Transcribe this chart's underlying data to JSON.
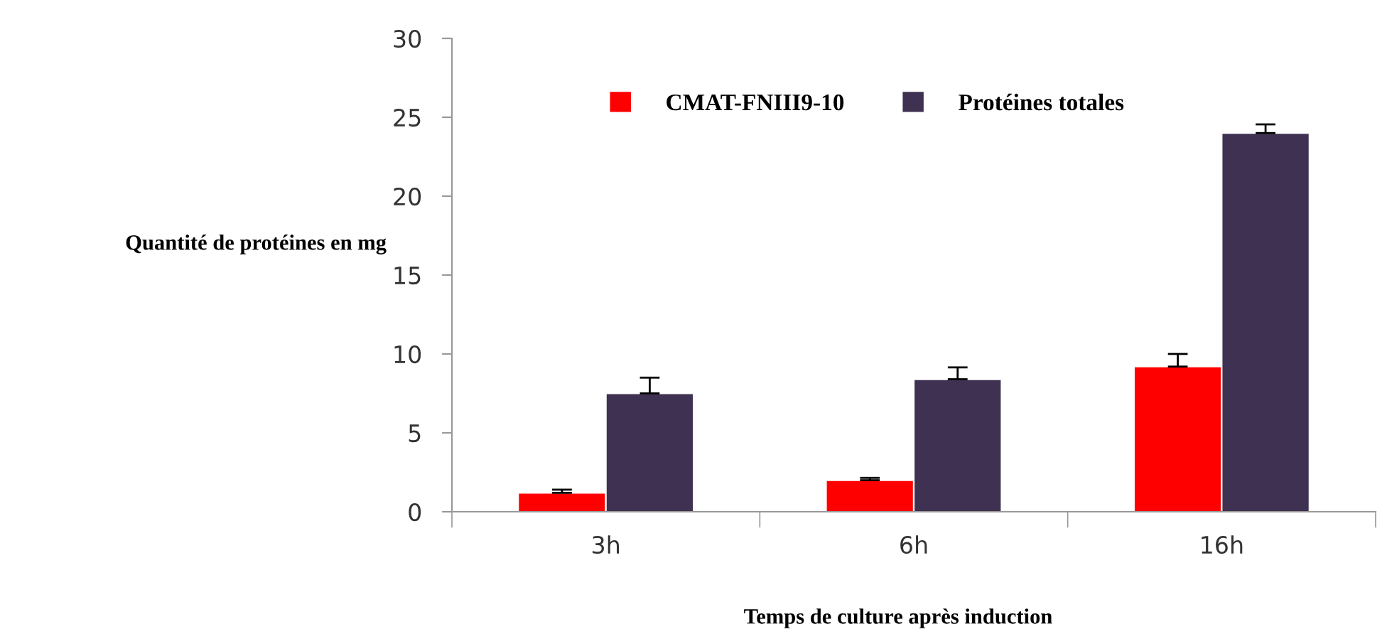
{
  "chart_data": {
    "type": "bar",
    "xlabel": "Temps de culture après induction",
    "ylabel": "Quantité de protéines en mg",
    "categories": [
      "3h",
      "6h",
      "16h"
    ],
    "series": [
      {
        "name": "CMAT-FNIII9-10",
        "color": "#ff0000",
        "values": [
          1.2,
          2.0,
          9.2
        ],
        "errors": [
          [
            1.2,
            1.4
          ],
          [
            2.0,
            2.15
          ],
          [
            9.2,
            10.0
          ]
        ]
      },
      {
        "name": "Protéines totales",
        "color": "#3f3151",
        "values": [
          7.5,
          8.4,
          24.0
        ],
        "errors": [
          [
            7.5,
            8.5
          ],
          [
            8.4,
            9.15
          ],
          [
            24.0,
            24.55
          ]
        ]
      }
    ],
    "ylim": [
      0,
      30
    ],
    "yticks": [
      0,
      5,
      10,
      15,
      20,
      25,
      30
    ],
    "grid": false,
    "legend": "top"
  }
}
